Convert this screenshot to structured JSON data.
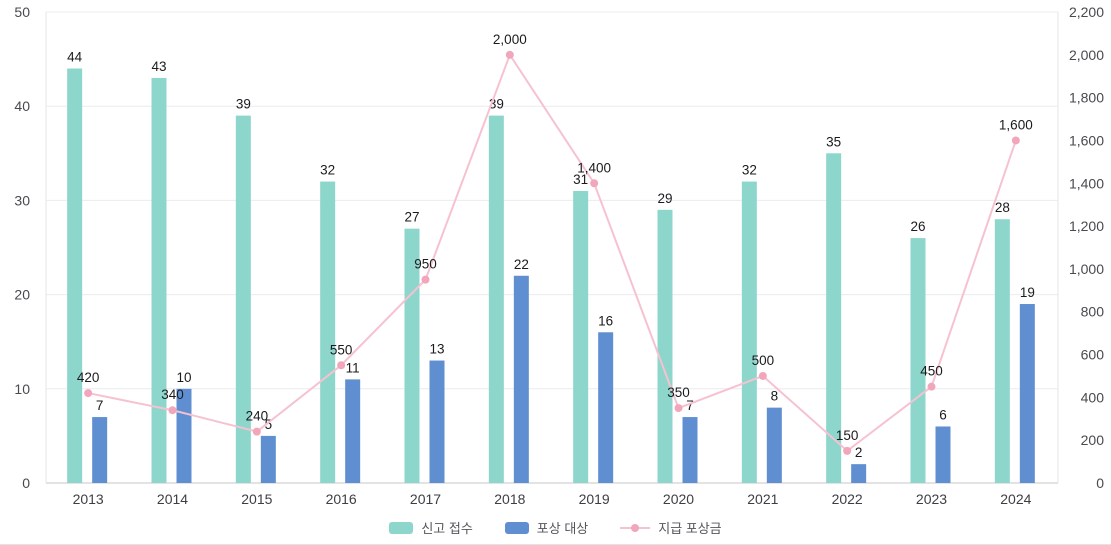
{
  "chart_data": {
    "type": "bar",
    "categories": [
      "2013",
      "2014",
      "2015",
      "2016",
      "2017",
      "2018",
      "2019",
      "2020",
      "2021",
      "2022",
      "2023",
      "2024"
    ],
    "series": [
      {
        "name": "신고 접수",
        "type": "bar",
        "axis": "left",
        "color": "#8dd6cb",
        "values": [
          44,
          43,
          39,
          32,
          27,
          39,
          31,
          29,
          32,
          35,
          26,
          28
        ]
      },
      {
        "name": "포상 대상",
        "type": "bar",
        "axis": "left",
        "color": "#5f8fd1",
        "values": [
          7,
          10,
          5,
          11,
          13,
          22,
          16,
          7,
          8,
          2,
          6,
          19
        ]
      },
      {
        "name": "지급 포상금",
        "type": "line",
        "axis": "right",
        "color": "#f6c2d0",
        "dot_color": "#f1a6bb",
        "values": [
          420,
          340,
          240,
          550,
          950,
          2000,
          1400,
          350,
          500,
          150,
          450,
          1600
        ]
      }
    ],
    "left_axis": {
      "min": 0,
      "max": 50,
      "ticks": [
        0,
        10,
        20,
        30,
        40,
        50
      ]
    },
    "right_axis": {
      "min": 0,
      "max": 2200,
      "ticks": [
        0,
        200,
        400,
        600,
        800,
        1000,
        1200,
        1400,
        1600,
        1800,
        2000,
        2200
      ]
    },
    "grid": true,
    "legend_position": "bottom",
    "text_colors": {
      "axis_label": "#49494f",
      "value_label": "#1b1b1e"
    }
  }
}
